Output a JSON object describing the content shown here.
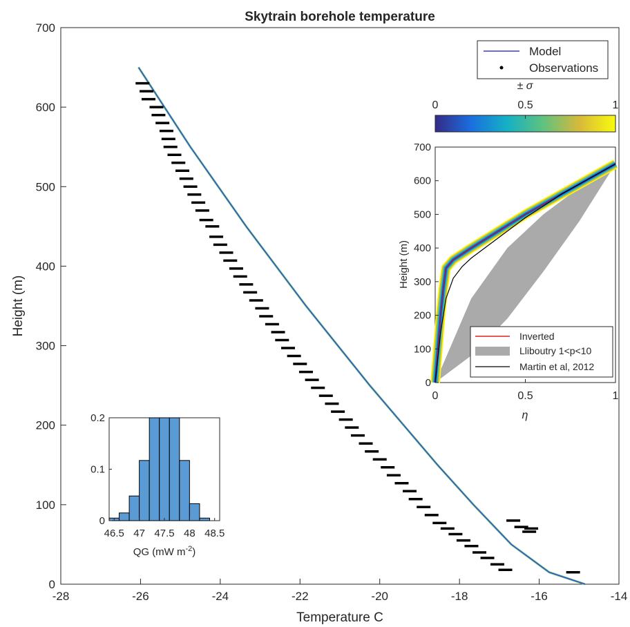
{
  "chart_data": [
    {
      "id": "main",
      "type": "line",
      "title": "Skytrain borehole temperature",
      "xlabel": "Temperature C",
      "ylabel": "Height (m)",
      "xlim": [
        -28,
        -14
      ],
      "ylim": [
        0,
        700
      ],
      "xticks": [
        -28,
        -26,
        -24,
        -22,
        -20,
        -18,
        -16,
        -14
      ],
      "yticks": [
        0,
        100,
        200,
        300,
        400,
        500,
        600,
        700
      ],
      "legend": {
        "placement": "top-right",
        "entries": [
          "Model",
          "Observations"
        ]
      },
      "series": [
        {
          "name": "Model",
          "color": "#3a3ad6",
          "x": [
            -26.05,
            -25.4,
            -24.75,
            -24.05,
            -23.35,
            -22.6,
            -21.85,
            -21.05,
            -20.25,
            -19.4,
            -18.55,
            -17.65,
            -16.7,
            -15.75,
            -14.85
          ],
          "y": [
            650,
            600,
            550,
            500,
            450,
            400,
            350,
            300,
            250,
            200,
            150,
            100,
            50,
            15,
            0
          ]
        },
        {
          "name": "Observations",
          "color": "#000000",
          "x": [
            -25.95,
            -25.85,
            -25.8,
            -25.6,
            -25.55,
            -25.45,
            -25.35,
            -25.3,
            -25.25,
            -25.15,
            -25.05,
            -24.95,
            -24.85,
            -24.75,
            -24.65,
            -24.55,
            -24.45,
            -24.35,
            -24.2,
            -24.1,
            -24.0,
            -23.85,
            -23.75,
            -23.6,
            -23.5,
            -23.35,
            -23.25,
            -23.1,
            -22.95,
            -22.85,
            -22.7,
            -22.55,
            -22.45,
            -22.3,
            -22.15,
            -22.0,
            -21.85,
            -21.7,
            -21.55,
            -21.35,
            -21.2,
            -21.05,
            -20.85,
            -20.7,
            -20.55,
            -20.35,
            -20.2,
            -20.0,
            -19.8,
            -19.65,
            -19.45,
            -19.25,
            -19.1,
            -18.9,
            -18.7,
            -18.5,
            -18.3,
            -18.1,
            -17.9,
            -17.7,
            -17.5,
            -17.3,
            -17.05,
            -16.85,
            -16.65,
            -16.45,
            -16.25,
            -16.2,
            -15.15
          ],
          "y": [
            630,
            620,
            610,
            600,
            590,
            580,
            570,
            560,
            550,
            540,
            530,
            520,
            510,
            500,
            490,
            480,
            470,
            458,
            450,
            437,
            427,
            417,
            407,
            397,
            387,
            377,
            367,
            357,
            347,
            337,
            327,
            317,
            307,
            297,
            287,
            277,
            267,
            257,
            247,
            237,
            227,
            217,
            207,
            197,
            187,
            177,
            167,
            157,
            147,
            137,
            127,
            117,
            107,
            97,
            87,
            77,
            70,
            63,
            55,
            48,
            40,
            33,
            25,
            18,
            80,
            72,
            66,
            70,
            15
          ]
        }
      ]
    },
    {
      "id": "colorbar",
      "type": "heatmap",
      "title": "± σ",
      "clim": [
        0,
        1
      ],
      "ticks": [
        "0",
        "0.5",
        "1"
      ],
      "colors": [
        "#352a87",
        "#1a6fdf",
        "#15b1c4",
        "#5fc27e",
        "#d8b93a",
        "#f9fb0e"
      ]
    },
    {
      "id": "inset_eta",
      "type": "line",
      "xlabel": "η",
      "ylabel": "Height (m)",
      "xlim": [
        0,
        1
      ],
      "ylim": [
        0,
        700
      ],
      "xticks": [
        "0",
        "0.5",
        "1"
      ],
      "yticks": [
        "0",
        "100",
        "200",
        "300",
        "400",
        "500",
        "600",
        "700"
      ],
      "legend": {
        "placement": "bottom-right",
        "entries": [
          "Inverted",
          "Lliboutry 1<p<10",
          "Martin et al, 2012"
        ]
      },
      "series": [
        {
          "name": "Inverted",
          "color": "#e02020",
          "x": [
            0,
            0.015,
            0.03,
            0.045,
            0.06,
            0.1,
            0.2,
            0.35,
            0.5,
            0.65,
            0.8,
            1.0
          ],
          "y": [
            0,
            100,
            200,
            280,
            340,
            365,
            400,
            450,
            500,
            545,
            590,
            650
          ]
        },
        {
          "name": "Lliboutry 1<p<10",
          "color": "#aaaaaa",
          "x": [
            0,
            0.2,
            0.4,
            0.6,
            0.8,
            1.0
          ],
          "y_low": [
            0,
            80,
            190,
            330,
            480,
            650
          ],
          "y_high": [
            0,
            250,
            400,
            500,
            580,
            650
          ]
        },
        {
          "name": "Martin et al, 2012",
          "color": "#000000",
          "x": [
            0,
            0.01,
            0.03,
            0.06,
            0.1,
            0.15,
            0.2,
            0.3,
            0.4,
            0.5,
            0.6,
            0.7,
            0.8,
            0.9,
            1.0
          ],
          "y": [
            0,
            50,
            150,
            250,
            310,
            345,
            370,
            410,
            450,
            490,
            525,
            560,
            590,
            620,
            650
          ]
        }
      ]
    },
    {
      "id": "inset_hist",
      "type": "bar",
      "xlabel": "QG (mW m",
      "xlabel_sup": "-2",
      "xlabel_end": ")",
      "xlim": [
        46.4,
        48.6
      ],
      "ylim": [
        0,
        0.2
      ],
      "xticks": [
        "46.5",
        "47",
        "47.5",
        "48",
        "48.5"
      ],
      "yticks": [
        "0",
        "0.1",
        "0.2"
      ],
      "color": "#5b9bd5",
      "bins": [
        46.5,
        46.7,
        46.9,
        47.1,
        47.3,
        47.5,
        47.7,
        47.9,
        48.1,
        48.3
      ],
      "values": [
        0.005,
        0.015,
        0.048,
        0.117,
        0.205,
        0.228,
        0.2,
        0.117,
        0.033,
        0.005
      ]
    }
  ]
}
